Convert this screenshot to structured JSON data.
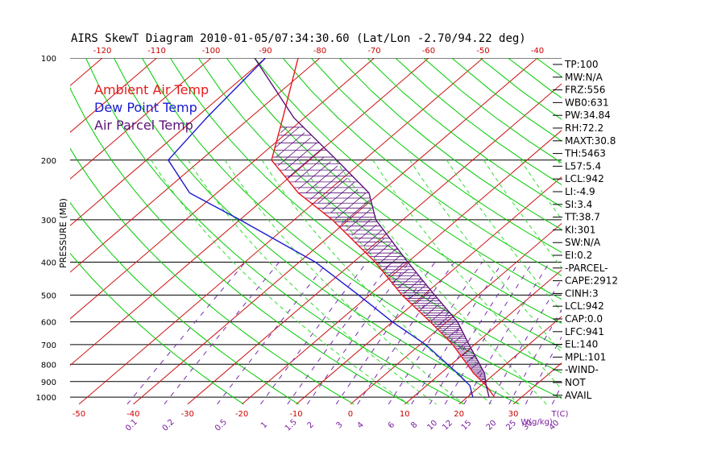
{
  "chart_data": {
    "type": "line",
    "title": "AIRS SkewT Diagram 2010-01-05/07:34:30.60 (Lat/Lon -2.70/94.22 deg)",
    "ylabel": "PRESSURE (MB)",
    "y_scale": "log",
    "ylim": [
      1050,
      100
    ],
    "xlim": [
      -53,
      37
    ],
    "xlabel": "T(C)",
    "mixing_ratio_label": "W(g/kg)",
    "pressure_ticks": [
      100,
      200,
      300,
      400,
      500,
      600,
      700,
      800,
      900,
      1000
    ],
    "temp_ticks_top": [
      -120,
      -110,
      -100,
      -90,
      -80,
      -70,
      -60,
      -50,
      -40
    ],
    "temp_ticks_bottom": [
      -50,
      -40,
      -30,
      -20,
      -10,
      0,
      10,
      20,
      30
    ],
    "mixing_ratio_ticks": [
      "0.1",
      "0.2",
      "0.5",
      "1",
      "1.5",
      "2",
      "3",
      "4",
      "6",
      "8",
      "10",
      "12",
      "15",
      "20",
      "25",
      "30",
      "40"
    ],
    "legend": [
      {
        "name": "Ambient Air Temp",
        "color": "#e8191b"
      },
      {
        "name": "Dew Point Temp",
        "color": "#1a1ad0"
      },
      {
        "name": "Air Parcel Temp",
        "color": "#5a127a"
      }
    ],
    "series": [
      {
        "name": "Ambient Air Temp",
        "color": "#e8191b",
        "points": [
          [
            100,
            -84
          ],
          [
            150,
            -74
          ],
          [
            200,
            -67
          ],
          [
            250,
            -55
          ],
          [
            300,
            -43
          ],
          [
            400,
            -26
          ],
          [
            500,
            -14
          ],
          [
            600,
            -3
          ],
          [
            700,
            6
          ],
          [
            850,
            16
          ],
          [
            925,
            21
          ],
          [
            1000,
            25
          ]
        ]
      },
      {
        "name": "Dew Point Temp",
        "color": "#1a1ad0",
        "points": [
          [
            100,
            -90
          ],
          [
            150,
            -88
          ],
          [
            200,
            -86
          ],
          [
            250,
            -75
          ],
          [
            300,
            -60
          ],
          [
            400,
            -37
          ],
          [
            500,
            -22
          ],
          [
            600,
            -10
          ],
          [
            700,
            1
          ],
          [
            850,
            13
          ],
          [
            925,
            18
          ],
          [
            1000,
            21
          ]
        ]
      },
      {
        "name": "Air Parcel Temp",
        "color": "#5a127a",
        "points": [
          [
            100,
            -92
          ],
          [
            150,
            -72
          ],
          [
            200,
            -55
          ],
          [
            250,
            -42
          ],
          [
            300,
            -35
          ],
          [
            400,
            -20
          ],
          [
            500,
            -8
          ],
          [
            600,
            2
          ],
          [
            700,
            9
          ],
          [
            850,
            18
          ],
          [
            925,
            21
          ],
          [
            1000,
            24
          ]
        ]
      }
    ],
    "dry_adiabats_theta_K": [
      250,
      260,
      270,
      280,
      290,
      300,
      310,
      320,
      330,
      340,
      350,
      360,
      370,
      380,
      390,
      400,
      410,
      420,
      430,
      440,
      450,
      460,
      470
    ],
    "moist_adiabats_theta_K": [
      280,
      285,
      290,
      295,
      300,
      305,
      310,
      315,
      320,
      325,
      330,
      335,
      340
    ],
    "annotations": [
      "TP:100",
      "MW:N/A",
      "FRZ:556",
      "WB0:631",
      "PW:34.84",
      "RH:72.2",
      "MAXT:30.8",
      "TH:5463",
      "L57:5.4",
      "LCL:942",
      "LI:-4.9",
      "SI:3.4",
      "TT:38.7",
      "KI:301",
      "SW:N/A",
      "EI:0.2",
      "-PARCEL-",
      "CAPE:2912",
      "CINH:3",
      "LCL:942",
      "CAP:0.0",
      "LFC:941",
      "EL:140",
      "MPL:101",
      "-WIND-",
      "NOT",
      "AVAIL"
    ]
  },
  "colors": {
    "isotherm": "#cc1111",
    "isobar": "#000000",
    "dry_adiabat": "#00cc00",
    "moist_adiabat": "#33dd33",
    "mixing_ratio": "#7a2ab0",
    "cape_hatch": "#5a127a"
  }
}
